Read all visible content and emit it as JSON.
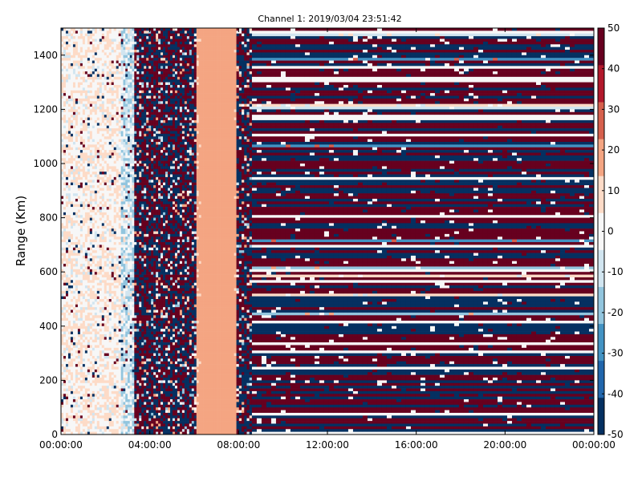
{
  "chart_data": {
    "type": "heatmap",
    "title": "Channel 1: 2019/03/04 23:51:42",
    "xlabel": "",
    "ylabel": "Range (Km)",
    "x_ticks": [
      "00:00:00",
      "04:00:00",
      "08:00:00",
      "12:00:00",
      "16:00:00",
      "20:00:00",
      "00:00:00"
    ],
    "xlim_hours": [
      0,
      24
    ],
    "y_ticks": [
      0,
      200,
      400,
      600,
      800,
      1000,
      1200,
      1400
    ],
    "ylim": [
      0,
      1500
    ],
    "colorbar": {
      "ticks": [
        50,
        40,
        30,
        20,
        10,
        0,
        -10,
        -20,
        -30,
        -40,
        -50
      ],
      "range": [
        -50,
        50
      ],
      "colormap": "RdBu_r",
      "colors": [
        "#053061",
        "#2166ac",
        "#4393c3",
        "#92c5de",
        "#d1e5f0",
        "#f7f7f7",
        "#fddbc7",
        "#f4a582",
        "#d6604d",
        "#b2182b",
        "#67001f"
      ]
    },
    "regions": [
      {
        "x_start_hours": 0.0,
        "x_end_hours": 2.7,
        "pattern": "noisy",
        "typical_value": 3,
        "spread": 9
      },
      {
        "x_start_hours": 2.7,
        "x_end_hours": 3.3,
        "pattern": "noisy",
        "typical_value": -8,
        "spread": 14
      },
      {
        "x_start_hours": 3.3,
        "x_end_hours": 6.1,
        "pattern": "noisy-saturated",
        "typical_value": 0,
        "spread": 50
      },
      {
        "x_start_hours": 6.1,
        "x_end_hours": 7.9,
        "pattern": "smooth",
        "typical_value": 15,
        "spread": 5
      },
      {
        "x_start_hours": 7.9,
        "x_end_hours": 8.6,
        "pattern": "noisy-saturated",
        "typical_value": 0,
        "spread": 50
      },
      {
        "x_start_hours": 8.6,
        "x_end_hours": 24.0,
        "pattern": "horizontal-bands",
        "typical_value": 0,
        "spread": 50
      }
    ],
    "grid": false
  }
}
